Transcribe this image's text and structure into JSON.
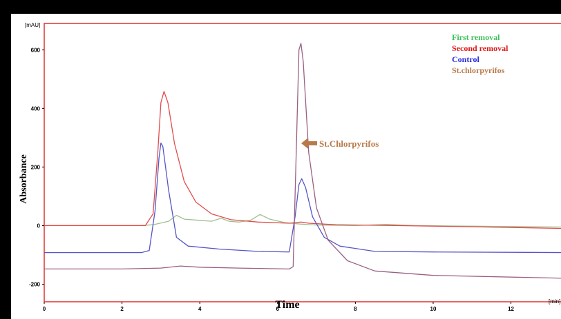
{
  "chart_data": {
    "type": "line",
    "title": "",
    "xlabel": "Time",
    "ylabel": "Absorbance",
    "x_unit": "[min]",
    "y_unit": "[mAU]",
    "xlim": [
      0,
      13.5
    ],
    "ylim": [
      -260,
      690
    ],
    "x_ticks": [
      0,
      2,
      4,
      6,
      8,
      10,
      12
    ],
    "y_ticks": [
      -200,
      0,
      200,
      400,
      600
    ],
    "y_tick_labels": [
      "-200",
      "0",
      "200",
      "400",
      "600"
    ],
    "legend_position": "top-right",
    "grid": false,
    "annotation": {
      "text": "St.Chlorpyrifos",
      "x": 6.65,
      "y": 275,
      "color": "#b87a4b"
    },
    "series": [
      {
        "name": "First removal",
        "color": "#9fbf8f",
        "points": [
          [
            0,
            0
          ],
          [
            2.5,
            0
          ],
          [
            2.8,
            3
          ],
          [
            3.2,
            15
          ],
          [
            3.4,
            35
          ],
          [
            3.6,
            22
          ],
          [
            4.0,
            18
          ],
          [
            4.3,
            15
          ],
          [
            4.55,
            25
          ],
          [
            4.75,
            15
          ],
          [
            5.0,
            12
          ],
          [
            5.3,
            18
          ],
          [
            5.55,
            38
          ],
          [
            5.8,
            22
          ],
          [
            6.2,
            10
          ],
          [
            6.6,
            5
          ],
          [
            7.0,
            2
          ],
          [
            8.0,
            0
          ],
          [
            8.8,
            4
          ],
          [
            9.5,
            0
          ],
          [
            13.5,
            -5
          ]
        ]
      },
      {
        "name": "Second removal",
        "color": "#e34b4b",
        "points": [
          [
            0,
            0
          ],
          [
            2.6,
            0
          ],
          [
            2.8,
            40
          ],
          [
            2.92,
            250
          ],
          [
            3.0,
            420
          ],
          [
            3.08,
            458
          ],
          [
            3.18,
            420
          ],
          [
            3.35,
            280
          ],
          [
            3.6,
            150
          ],
          [
            3.9,
            80
          ],
          [
            4.3,
            40
          ],
          [
            4.8,
            20
          ],
          [
            5.5,
            12
          ],
          [
            6.3,
            8
          ],
          [
            6.6,
            12
          ],
          [
            6.8,
            8
          ],
          [
            7.5,
            3
          ],
          [
            9,
            0
          ],
          [
            11,
            -4
          ],
          [
            13.5,
            -10
          ]
        ]
      },
      {
        "name": "Control",
        "color": "#5555c8",
        "points": [
          [
            0,
            -92
          ],
          [
            2.5,
            -92
          ],
          [
            2.7,
            -85
          ],
          [
            2.85,
            50
          ],
          [
            2.95,
            230
          ],
          [
            3.0,
            282
          ],
          [
            3.05,
            270
          ],
          [
            3.2,
            120
          ],
          [
            3.4,
            -40
          ],
          [
            3.7,
            -70
          ],
          [
            4.5,
            -80
          ],
          [
            5.5,
            -88
          ],
          [
            6.3,
            -90
          ],
          [
            6.45,
            30
          ],
          [
            6.55,
            140
          ],
          [
            6.62,
            160
          ],
          [
            6.72,
            130
          ],
          [
            6.9,
            30
          ],
          [
            7.2,
            -40
          ],
          [
            7.6,
            -70
          ],
          [
            8.5,
            -88
          ],
          [
            10,
            -90
          ],
          [
            13.5,
            -92
          ]
        ]
      },
      {
        "name": "St.chlorpyrifos",
        "color": "#9a5f82",
        "points": [
          [
            0,
            -148
          ],
          [
            2.0,
            -148
          ],
          [
            3.0,
            -145
          ],
          [
            3.5,
            -138
          ],
          [
            4.0,
            -142
          ],
          [
            5.0,
            -145
          ],
          [
            6.3,
            -148
          ],
          [
            6.4,
            -140
          ],
          [
            6.47,
            200
          ],
          [
            6.55,
            600
          ],
          [
            6.6,
            622
          ],
          [
            6.66,
            560
          ],
          [
            6.8,
            250
          ],
          [
            7.0,
            60
          ],
          [
            7.3,
            -50
          ],
          [
            7.8,
            -120
          ],
          [
            8.5,
            -155
          ],
          [
            10,
            -170
          ],
          [
            13.5,
            -180
          ]
        ]
      }
    ]
  }
}
